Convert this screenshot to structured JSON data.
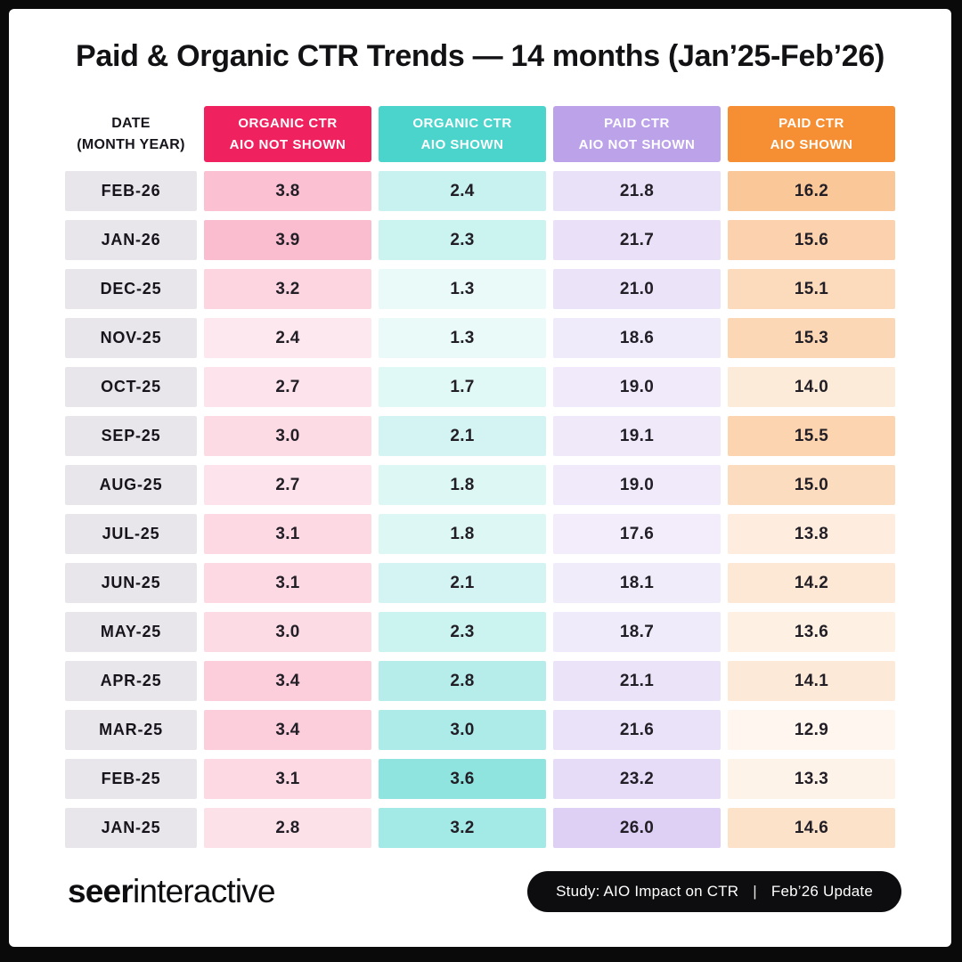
{
  "title": "Paid & Organic CTR Trends — 14 months (Jan’25-Feb’26)",
  "colors": {
    "frame_black": "#0a0a0a",
    "canvas_white": "#ffffff",
    "date_cell_bg": "#e8e6eb",
    "text_dark": "#17141b"
  },
  "table": {
    "date_header": {
      "line1": "DATE",
      "line2": "(MONTH YEAR)"
    },
    "columns": [
      {
        "id": "organic-ctr-aio-not-shown",
        "label_line1": "ORGANIC CTR",
        "label_line2": "AIO NOT SHOWN",
        "color": "#f0215f",
        "alpha_min": 0.1,
        "alpha_max": 0.3
      },
      {
        "id": "organic-ctr-aio-shown",
        "label_line1": "ORGANIC CTR",
        "label_line2": "AIO SHOWN",
        "color": "#4bd4cc",
        "alpha_min": 0.12,
        "alpha_max": 0.62
      },
      {
        "id": "paid-ctr-aio-not-shown",
        "label_line1": "PAID CTR",
        "label_line2": "AIO NOT SHOWN",
        "color": "#bca2e9",
        "alpha_min": 0.2,
        "alpha_max": 0.5
      },
      {
        "id": "paid-ctr-aio-shown",
        "label_line1": "PAID CTR",
        "label_line2": "AIO SHOWN",
        "color": "#f68f33",
        "alpha_min": 0.08,
        "alpha_max": 0.5
      }
    ],
    "rows": [
      {
        "date": "FEB-26",
        "values": [
          3.8,
          2.4,
          21.8,
          16.2
        ]
      },
      {
        "date": "JAN-26",
        "values": [
          3.9,
          2.3,
          21.7,
          15.6
        ]
      },
      {
        "date": "DEC-25",
        "values": [
          3.2,
          1.3,
          21.0,
          15.1
        ]
      },
      {
        "date": "NOV-25",
        "values": [
          2.4,
          1.3,
          18.6,
          15.3
        ]
      },
      {
        "date": "OCT-25",
        "values": [
          2.7,
          1.7,
          19.0,
          14.0
        ]
      },
      {
        "date": "SEP-25",
        "values": [
          3.0,
          2.1,
          19.1,
          15.5
        ]
      },
      {
        "date": "AUG-25",
        "values": [
          2.7,
          1.8,
          19.0,
          15.0
        ]
      },
      {
        "date": "JUL-25",
        "values": [
          3.1,
          1.8,
          17.6,
          13.8
        ]
      },
      {
        "date": "JUN-25",
        "values": [
          3.1,
          2.1,
          18.1,
          14.2
        ]
      },
      {
        "date": "MAY-25",
        "values": [
          3.0,
          2.3,
          18.7,
          13.6
        ]
      },
      {
        "date": "APR-25",
        "values": [
          3.4,
          2.8,
          21.1,
          14.1
        ]
      },
      {
        "date": "MAR-25",
        "values": [
          3.4,
          3.0,
          21.6,
          12.9
        ]
      },
      {
        "date": "FEB-25",
        "values": [
          3.1,
          3.6,
          23.2,
          13.3
        ]
      },
      {
        "date": "JAN-25",
        "values": [
          2.8,
          3.2,
          26.0,
          14.6
        ]
      }
    ]
  },
  "footer": {
    "logo_bold": "seer",
    "logo_light": "interactive",
    "badge": {
      "study": "Study: AIO Impact on CTR",
      "separator": "|",
      "update": "Feb’26 Update"
    }
  },
  "chart_data": {
    "type": "table",
    "title": "Paid & Organic CTR Trends — 14 months (Jan’25-Feb’26)",
    "categories": [
      "FEB-26",
      "JAN-26",
      "DEC-25",
      "NOV-25",
      "OCT-25",
      "SEP-25",
      "AUG-25",
      "JUL-25",
      "JUN-25",
      "MAY-25",
      "APR-25",
      "MAR-25",
      "FEB-25",
      "JAN-25"
    ],
    "series": [
      {
        "name": "Organic CTR AIO Not Shown",
        "values": [
          3.8,
          3.9,
          3.2,
          2.4,
          2.7,
          3.0,
          2.7,
          3.1,
          3.1,
          3.0,
          3.4,
          3.4,
          3.1,
          2.8
        ]
      },
      {
        "name": "Organic CTR AIO Shown",
        "values": [
          2.4,
          2.3,
          1.3,
          1.3,
          1.7,
          2.1,
          1.8,
          1.8,
          2.1,
          2.3,
          2.8,
          3.0,
          3.6,
          3.2
        ]
      },
      {
        "name": "Paid CTR AIO Not Shown",
        "values": [
          21.8,
          21.7,
          21.0,
          18.6,
          19.0,
          19.1,
          19.0,
          17.6,
          18.1,
          18.7,
          21.1,
          21.6,
          23.2,
          26.0
        ]
      },
      {
        "name": "Paid CTR AIO Shown",
        "values": [
          16.2,
          15.6,
          15.1,
          15.3,
          14.0,
          15.5,
          15.0,
          13.8,
          14.2,
          13.6,
          14.1,
          12.9,
          13.3,
          14.6
        ]
      }
    ],
    "layout": "rows are months (newest first), cell shading intensity scales with value per column (heatmap table)"
  }
}
